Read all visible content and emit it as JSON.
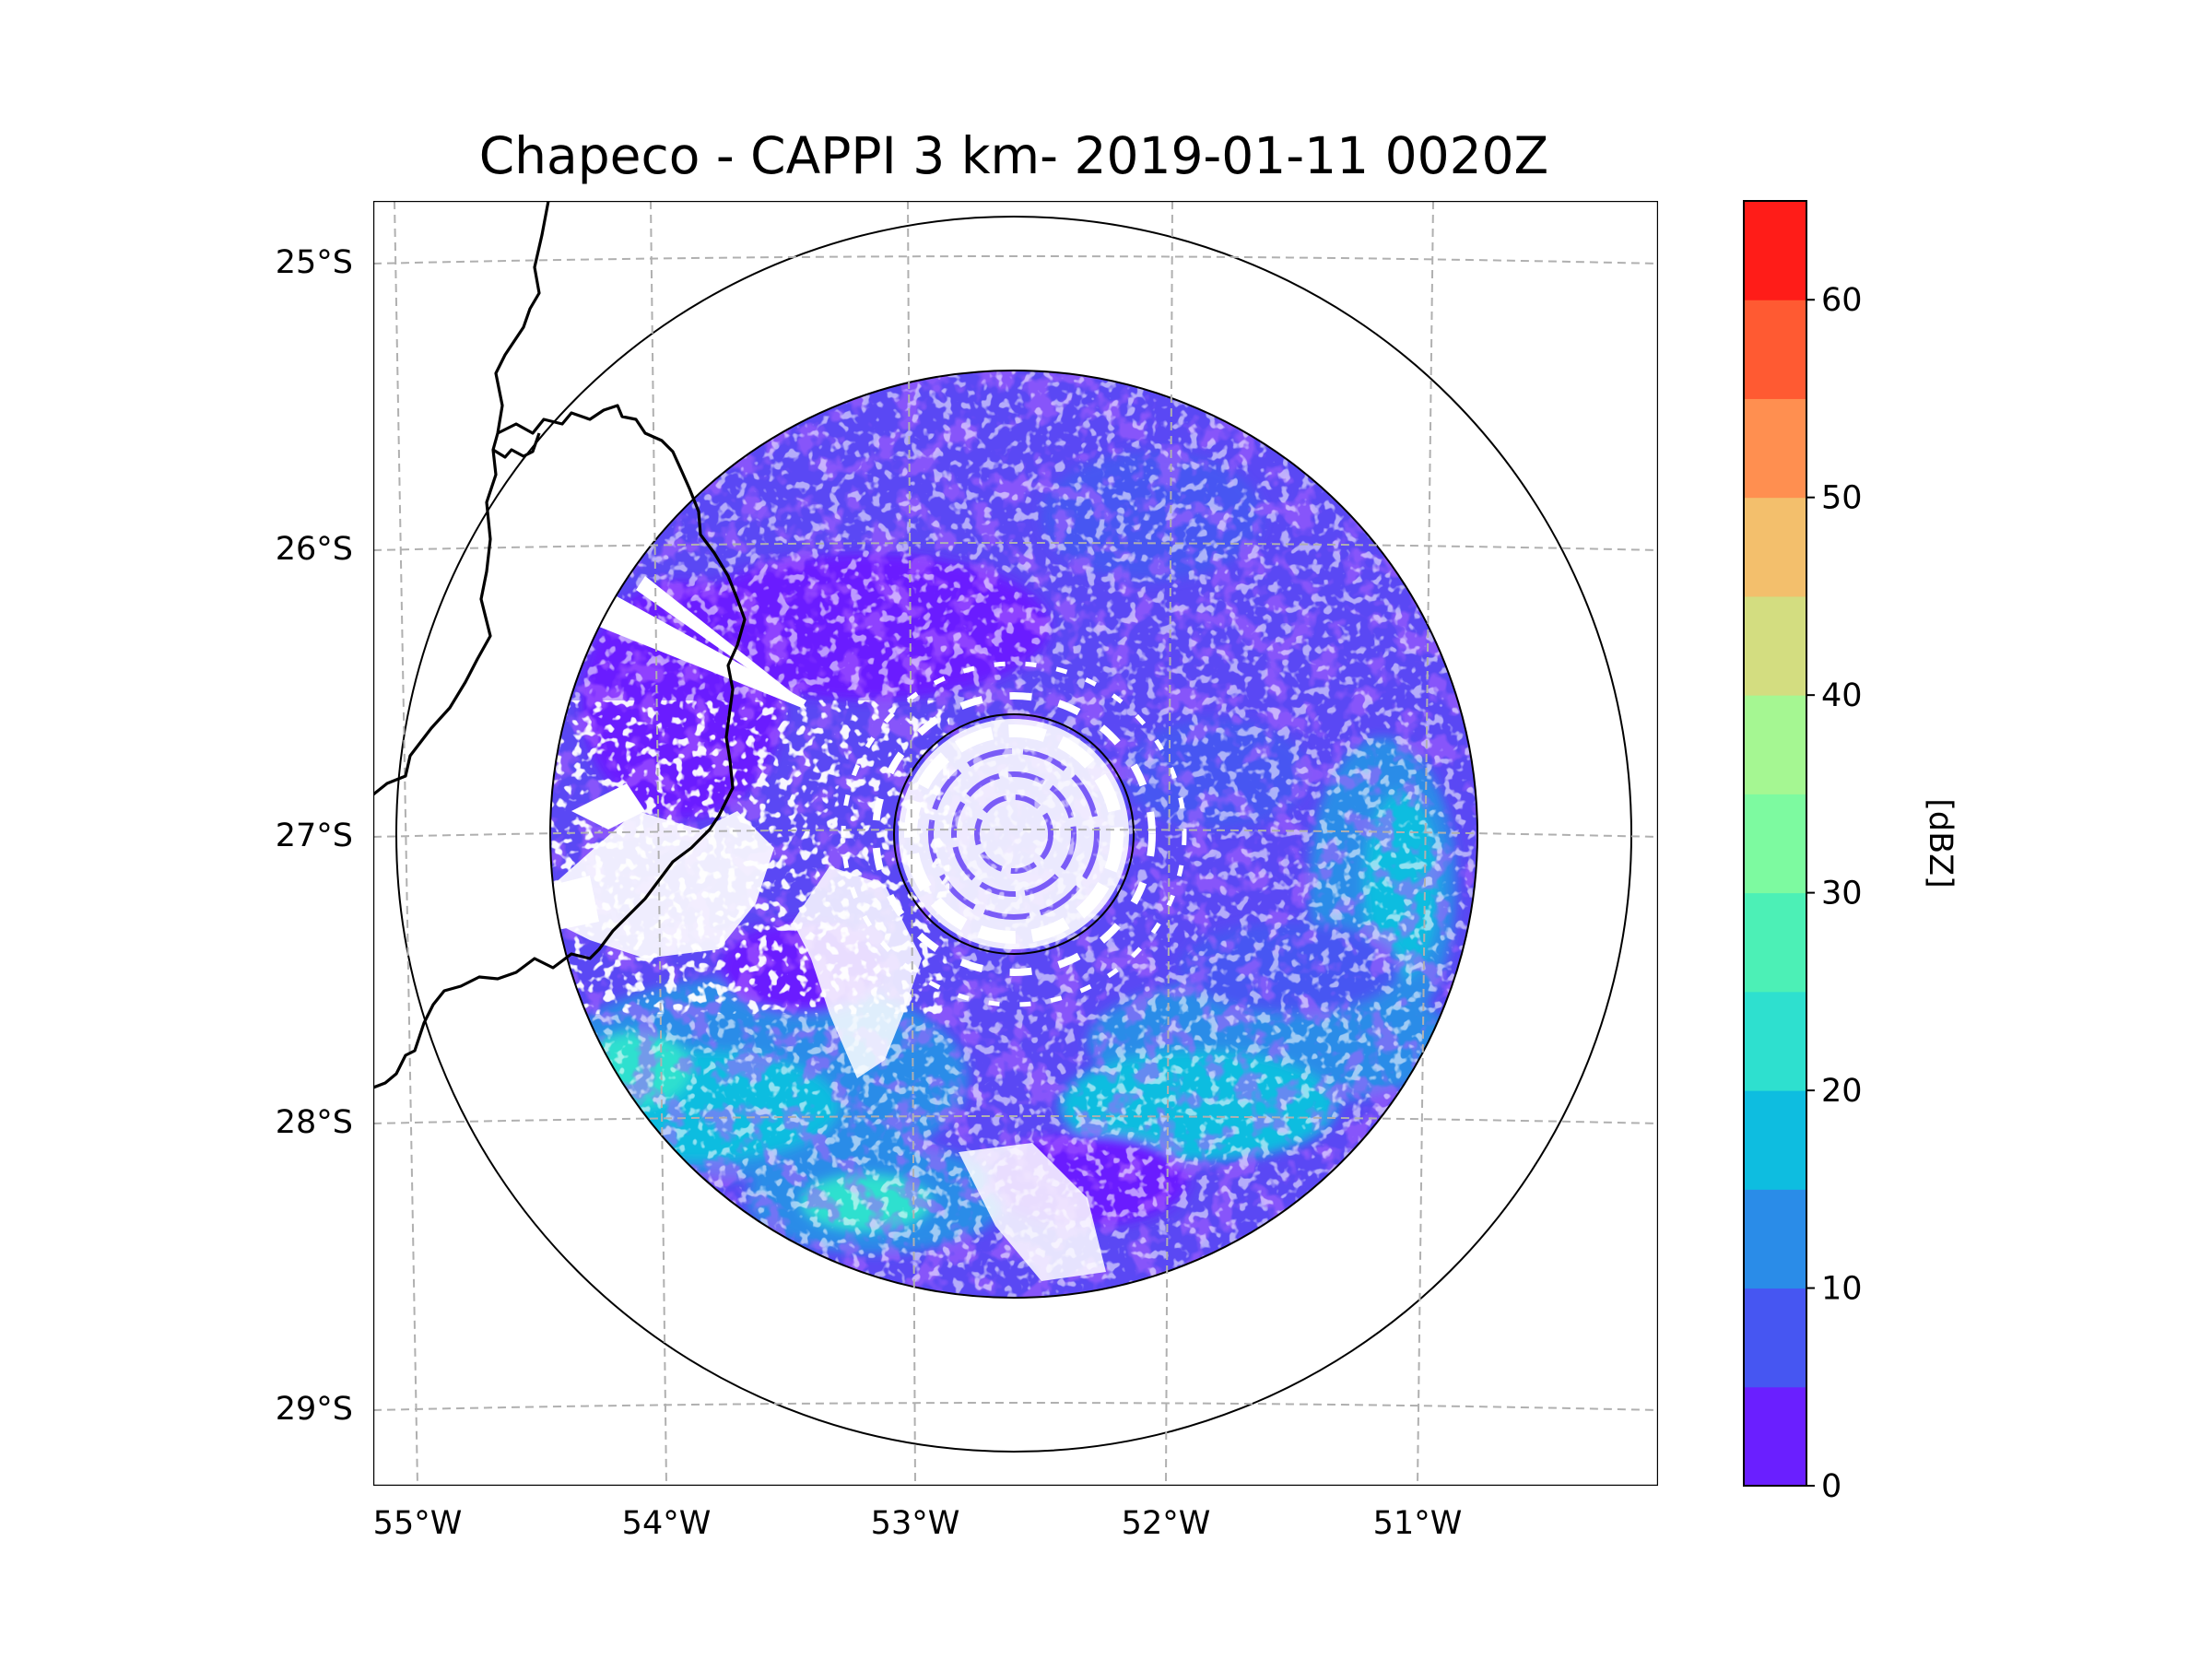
{
  "title": "Chapeco - CAPPI 3 km- 2019-01-11 0020Z",
  "map": {
    "lon_labels": [
      "55°W",
      "54°W",
      "53°W",
      "52°W",
      "51°W"
    ],
    "lat_labels": [
      "25°S",
      "26°S",
      "27°S",
      "28°S",
      "29°S"
    ],
    "radar_center": {
      "lon": -52.6,
      "lat": -27.05
    },
    "colors": {
      "frame": "#000000",
      "grid": "#b0b0b0",
      "background": "#ffffff"
    }
  },
  "colorbar": {
    "label": "[dBZ]",
    "ticks": [
      "0",
      "10",
      "20",
      "30",
      "40",
      "50",
      "60"
    ],
    "bounds": [
      0,
      5,
      10,
      15,
      20,
      25,
      30,
      35,
      40,
      45,
      50,
      55,
      60,
      65
    ],
    "colors": [
      "#6a1fff",
      "#4656f2",
      "#2a8ce8",
      "#0ebde0",
      "#2ee0cf",
      "#4cf0b6",
      "#7dfaa0",
      "#a5f792",
      "#d3dd80",
      "#f3bf6c",
      "#ff8f50",
      "#ff5a32",
      "#ff1c18"
    ]
  }
}
